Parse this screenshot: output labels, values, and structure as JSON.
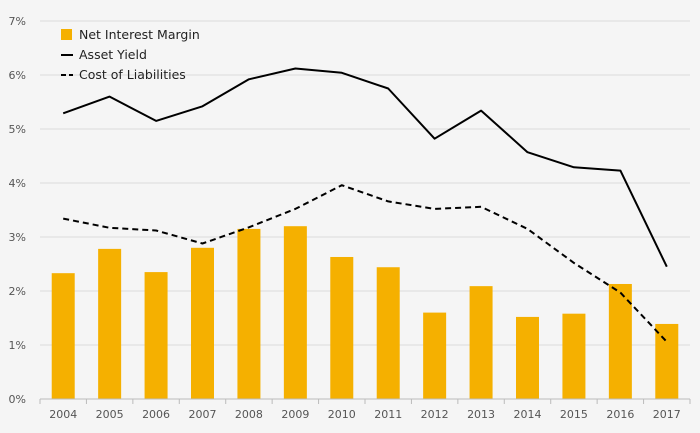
{
  "chart_data": {
    "type": "bar",
    "categories": [
      "2004",
      "2005",
      "2006",
      "2007",
      "2008",
      "2009",
      "2010",
      "2011",
      "2012",
      "2013",
      "2014",
      "2015",
      "2016",
      "2017"
    ],
    "series": [
      {
        "name": "Net Interest Margin",
        "kind": "bar",
        "color": "#f5b000",
        "values": [
          2.33,
          2.78,
          2.35,
          2.8,
          3.15,
          3.2,
          2.63,
          2.44,
          1.6,
          2.09,
          1.52,
          1.58,
          2.13,
          1.39
        ]
      },
      {
        "name": "Asset Yield",
        "kind": "line",
        "color": "#000000",
        "dash": "solid",
        "values": [
          5.29,
          5.6,
          5.15,
          5.42,
          5.92,
          6.12,
          6.04,
          5.75,
          4.82,
          5.34,
          4.57,
          4.29,
          4.23,
          2.45
        ]
      },
      {
        "name": "Cost of Liabilities",
        "kind": "line",
        "color": "#000000",
        "dash": "dashed",
        "values": [
          3.34,
          3.17,
          3.12,
          2.88,
          3.18,
          3.52,
          3.96,
          3.66,
          3.52,
          3.56,
          3.15,
          2.52,
          1.97,
          1.06
        ]
      }
    ],
    "y_ticks": [
      "0%",
      "1%",
      "2%",
      "3%",
      "4%",
      "5%",
      "6%",
      "7%"
    ],
    "ylim": [
      0,
      7
    ],
    "grid": true,
    "legend_position": "top-left"
  }
}
